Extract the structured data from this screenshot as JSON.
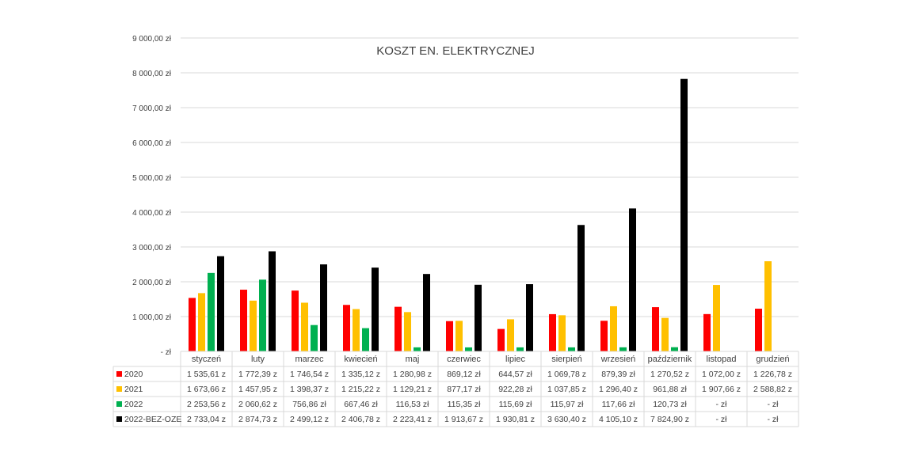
{
  "chart_data": {
    "type": "bar",
    "title": "KOSZT EN. ELEKTRYCZNEJ",
    "xlabel": "",
    "ylabel": "",
    "ylim": [
      0,
      9000
    ],
    "y_ticks": [
      {
        "value": 0,
        "label": "-   zł"
      },
      {
        "value": 1000,
        "label": "1 000,00 zł"
      },
      {
        "value": 2000,
        "label": "2 000,00 zł"
      },
      {
        "value": 3000,
        "label": "3 000,00 zł"
      },
      {
        "value": 4000,
        "label": "4 000,00 zł"
      },
      {
        "value": 5000,
        "label": "5 000,00 zł"
      },
      {
        "value": 6000,
        "label": "6 000,00 zł"
      },
      {
        "value": 7000,
        "label": "7 000,00 zł"
      },
      {
        "value": 8000,
        "label": "8 000,00 zł"
      },
      {
        "value": 9000,
        "label": "9 000,00 zł"
      }
    ],
    "grid": true,
    "legend": "data-table",
    "categories": [
      "styczeń",
      "luty",
      "marzec",
      "kwiecień",
      "maj",
      "czerwiec",
      "lipiec",
      "sierpień",
      "wrzesień",
      "październik",
      "listopad",
      "grudzień"
    ],
    "series": [
      {
        "name": "2020",
        "color": "#ff0000",
        "values": [
          1535.61,
          1772.39,
          1746.54,
          1335.12,
          1280.98,
          869.12,
          644.57,
          1069.78,
          879.39,
          1270.52,
          1072.0,
          1226.78
        ],
        "labels": [
          "1 535,61 z",
          "1 772,39 z",
          "1 746,54 z",
          "1 335,12 z",
          "1 280,98 z",
          "869,12 zł",
          "644,57 zł",
          "1 069,78 z",
          "879,39 zł",
          "1 270,52 z",
          "1 072,00 z",
          "1 226,78 z"
        ]
      },
      {
        "name": "2021",
        "color": "#ffc000",
        "values": [
          1673.66,
          1457.95,
          1398.37,
          1215.22,
          1129.21,
          877.17,
          922.28,
          1037.85,
          1296.4,
          961.88,
          1907.66,
          2588.82
        ],
        "labels": [
          "1 673,66 z",
          "1 457,95 z",
          "1 398,37 z",
          "1 215,22 z",
          "1 129,21 z",
          "877,17 zł",
          "922,28 zł",
          "1 037,85 z",
          "1 296,40 z",
          "961,88 zł",
          "1 907,66 z",
          "2 588,82 z"
        ]
      },
      {
        "name": "2022",
        "color": "#00b050",
        "values": [
          2253.56,
          2060.62,
          756.86,
          667.46,
          116.53,
          115.35,
          115.69,
          115.97,
          117.66,
          120.73,
          0,
          0
        ],
        "labels": [
          "2 253,56 z",
          "2 060,62 z",
          "756,86 zł",
          "667,46 zł",
          "116,53 zł",
          "115,35 zł",
          "115,69 zł",
          "115,97 zł",
          "117,66 zł",
          "120,73 zł",
          "-   zł",
          "-   zł"
        ]
      },
      {
        "name": "2022-BEZ-OZE",
        "color": "#000000",
        "values": [
          2733.04,
          2874.73,
          2499.12,
          2406.78,
          2223.41,
          1913.67,
          1930.81,
          3630.4,
          4105.1,
          7824.9,
          0,
          0
        ],
        "labels": [
          "2 733,04 z",
          "2 874,73 z",
          "2 499,12 z",
          "2 406,78 z",
          "2 223,41 z",
          "1 913,67 z",
          "1 930,81 z",
          "3 630,40 z",
          "4 105,10 z",
          "7 824,90 z",
          "-   zł",
          "-   zł"
        ]
      }
    ]
  }
}
